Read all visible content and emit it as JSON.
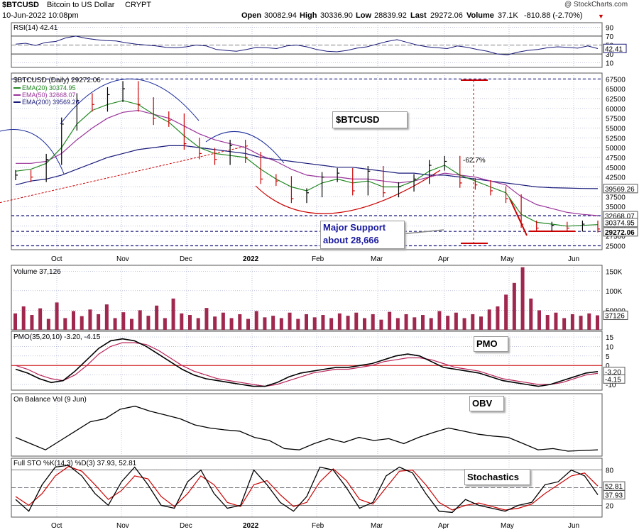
{
  "header": {
    "symbol": "$BTCUSD",
    "name": "Bitcoin to US Dollar",
    "exchange": "CRYPT",
    "date_time": "10-Jun-2022 10:08pm",
    "open_label": "Open",
    "open": "30082.94",
    "high_label": "High",
    "high": "30336.90",
    "low_label": "Low",
    "low": "28839.92",
    "last_label": "Last",
    "last": "29272.06",
    "volume_label": "Volume",
    "volume": "37.1K",
    "change": "-810.88 (-2.70%)",
    "watermark": "@ StockCharts.com"
  },
  "colors": {
    "grid": "#9aa0c8",
    "up": "#000000",
    "down": "#cc0000",
    "ema20": "#228822",
    "ema50": "#993399",
    "ema200": "#1a1a7a",
    "dashed": "#1a1a7a",
    "red": "#cc0000",
    "volume": "#a0284e"
  },
  "x_axis": {
    "labels": [
      "Oct",
      "Nov",
      "Dec",
      "2022",
      "Feb",
      "Mar",
      "Apr",
      "May",
      "Jun"
    ]
  },
  "chart_data": [
    {
      "type": "line",
      "panel": "rsi",
      "label": "RSI(14) 42.41",
      "y_ticks": [
        "90",
        "70",
        "50",
        "30",
        "10"
      ],
      "ylim": [
        0,
        100
      ],
      "levels": [
        70,
        30
      ],
      "last_value": "42.41",
      "series": [
        {
          "values": [
            52,
            54,
            49,
            56,
            58,
            66,
            70,
            65,
            62,
            60,
            59,
            55,
            52,
            50,
            48,
            45,
            44,
            46,
            50,
            48,
            40,
            38,
            36,
            40,
            45,
            44,
            42,
            48,
            50,
            46,
            40,
            36,
            35,
            38,
            43,
            46,
            52,
            58,
            62,
            56,
            50,
            46,
            44,
            42,
            48,
            45,
            40,
            36,
            30,
            28,
            34,
            38,
            40,
            44,
            46,
            45,
            43,
            48,
            42
          ]
        }
      ]
    },
    {
      "type": "candlestick",
      "panel": "price",
      "label": "$BTCUSD (Daily) 29272.06",
      "y_ticks": [
        "67500",
        "65000",
        "62500",
        "60000",
        "57500",
        "55000",
        "52500",
        "50000",
        "47500",
        "45000",
        "42500",
        "40000",
        "37500",
        "35000",
        "32500",
        "30000",
        "27500",
        "25000"
      ],
      "ylim": [
        24000,
        69000
      ],
      "dates": [
        "Sep 20",
        "Sep 27",
        "Oct 4",
        "Oct 11",
        "Oct 18",
        "Oct 25",
        "Nov 1",
        "Nov 8",
        "Nov 15",
        "Nov 22",
        "Nov 29",
        "Dec 6",
        "Dec 13",
        "Dec 20",
        "Dec 27",
        "Jan 3",
        "Jan 10",
        "Jan 17",
        "Jan 24",
        "Jan 31",
        "Feb 7",
        "Feb 14",
        "Feb 21",
        "Feb 28",
        "Mar 7",
        "Mar 14",
        "Mar 21",
        "Mar 28",
        "Apr 4",
        "Apr 11",
        "Apr 18",
        "Apr 25",
        "May 2",
        "May 9",
        "May 16",
        "May 23",
        "May 30",
        "Jun 6",
        "Jun 10"
      ],
      "close": [
        43000,
        42500,
        47000,
        56000,
        62000,
        61000,
        63500,
        65000,
        61000,
        57500,
        57000,
        51000,
        48500,
        47000,
        50500,
        47500,
        42000,
        41500,
        37000,
        38500,
        42500,
        43500,
        39000,
        44000,
        38500,
        40000,
        42000,
        45500,
        46500,
        41000,
        40500,
        39000,
        37000,
        30500,
        29500,
        30200,
        29500,
        30500,
        29272
      ],
      "ema20_label": "EMA(20) 30374.95",
      "ema20": [
        44000,
        44500,
        46000,
        50000,
        56000,
        59500,
        61000,
        62000,
        61000,
        58500,
        56500,
        53000,
        50000,
        48500,
        48000,
        47500,
        44500,
        42000,
        40000,
        39000,
        41000,
        42000,
        41000,
        41500,
        40000,
        40000,
        41500,
        44000,
        45500,
        43000,
        41500,
        40000,
        38500,
        33000,
        31000,
        30500,
        30000,
        30200,
        30375
      ],
      "ema50_label": "EMA(50) 32668.07",
      "ema50": [
        46000,
        46000,
        46500,
        48500,
        52000,
        55000,
        57500,
        59000,
        59500,
        58500,
        57500,
        55500,
        53500,
        52000,
        51000,
        50000,
        48000,
        46500,
        44500,
        43000,
        42500,
        42500,
        42000,
        42000,
        41500,
        41000,
        41500,
        42500,
        43500,
        43000,
        42500,
        41500,
        40500,
        37500,
        35500,
        34500,
        33500,
        33000,
        32668
      ],
      "ema200_label": "EMA(200) 39569.26",
      "ema200": [
        40500,
        41500,
        42000,
        43000,
        44500,
        46000,
        47500,
        48500,
        49500,
        50000,
        50500,
        50500,
        50000,
        49500,
        49000,
        48500,
        47500,
        47000,
        46500,
        46000,
        45500,
        45000,
        45000,
        44500,
        44000,
        43500,
        43500,
        43000,
        43000,
        42500,
        42000,
        41500,
        41000,
        40500,
        40000,
        39800,
        39700,
        39600,
        39569
      ],
      "levels": [
        {
          "value": 67500
        },
        {
          "value": 32668
        },
        {
          "value": 28666
        },
        {
          "value": 25000
        }
      ],
      "right_labels": [
        "39569.26",
        "32668.07",
        "30374.95",
        "29272.06"
      ],
      "drawdown_label": "-62.7%"
    },
    {
      "type": "bar",
      "panel": "volume",
      "label": "Volume 37,126",
      "y_ticks": [
        "150K",
        "100K",
        "50000"
      ],
      "ylim": [
        0,
        165000
      ],
      "last_value": "37126",
      "values": [
        42000,
        60000,
        38000,
        55000,
        28000,
        70000,
        30000,
        48000,
        35000,
        52000,
        40000,
        65000,
        30000,
        45000,
        28000,
        50000,
        36000,
        62000,
        30000,
        80000,
        42000,
        38000,
        30000,
        56000,
        34000,
        44000,
        30000,
        40000,
        28000,
        48000,
        32000,
        36000,
        30000,
        44000,
        28000,
        40000,
        32000,
        38000,
        30000,
        42000,
        36000,
        44000,
        30000,
        40000,
        26000,
        46000,
        30000,
        40000,
        32000,
        38000,
        30000,
        48000,
        36000,
        44000,
        30000,
        40000,
        34000,
        52000,
        60000,
        90000,
        120000,
        160000,
        80000,
        50000,
        38000,
        44000,
        30000,
        40000,
        36000,
        42000,
        37126
      ]
    },
    {
      "type": "line",
      "panel": "pmo",
      "label": "PMO(35,20,10) -3.20, -4.15",
      "y_ticks": [
        "15",
        "10",
        "5",
        "0",
        "-5",
        "-10"
      ],
      "ylim": [
        -13,
        18
      ],
      "last_values": [
        "-3.20",
        "-4.15"
      ],
      "series": [
        {
          "values": [
            -2,
            -4,
            -7,
            -9,
            -8,
            -3,
            3,
            9,
            13,
            14,
            13,
            10,
            6,
            2,
            -2,
            -5,
            -7,
            -8,
            -9,
            -10,
            -11,
            -11,
            -9,
            -6,
            -4,
            -3,
            -2,
            -1,
            -1,
            0,
            1,
            3,
            5,
            6,
            5,
            2,
            -1,
            -2,
            -3,
            -4,
            -6,
            -8,
            -9,
            -10,
            -11,
            -10,
            -8,
            -6,
            -4,
            -3.2
          ]
        },
        {
          "values": [
            0,
            -2,
            -5,
            -7,
            -8,
            -5,
            0,
            6,
            10,
            12,
            12,
            11,
            8,
            4,
            0,
            -3,
            -5,
            -7,
            -8,
            -9,
            -10,
            -11,
            -10,
            -8,
            -6,
            -4,
            -3,
            -2,
            -2,
            -1,
            0,
            2,
            3,
            4,
            4,
            3,
            1,
            -1,
            -2,
            -3,
            -5,
            -7,
            -8,
            -9,
            -10,
            -10,
            -9,
            -7,
            -5,
            -4.15
          ]
        }
      ]
    },
    {
      "type": "line",
      "panel": "obv",
      "label": "On Balance Vol (9 Jun)",
      "series": [
        {
          "values": [
            30,
            20,
            10,
            25,
            40,
            55,
            60,
            75,
            80,
            72,
            66,
            60,
            50,
            45,
            42,
            40,
            30,
            25,
            12,
            10,
            20,
            28,
            22,
            30,
            25,
            28,
            20,
            30,
            38,
            45,
            40,
            35,
            32,
            30,
            20,
            10,
            12,
            8,
            9,
            10
          ]
        }
      ]
    },
    {
      "type": "line",
      "panel": "stochastics",
      "label": "Full STO %K(14,3) %D(3) 37.93, 52.81",
      "y_ticks": [
        "80",
        "50",
        "20"
      ],
      "ylim": [
        0,
        100
      ],
      "levels": [
        80,
        50,
        20
      ],
      "last_values": [
        "52.81",
        "37.93"
      ],
      "series": [
        {
          "values": [
            30,
            10,
            55,
            85,
            88,
            70,
            40,
            20,
            60,
            85,
            55,
            20,
            15,
            60,
            80,
            40,
            15,
            20,
            80,
            55,
            25,
            10,
            35,
            85,
            80,
            50,
            15,
            25,
            70,
            85,
            75,
            40,
            10,
            8,
            30,
            20,
            15,
            10,
            20,
            25,
            55,
            60,
            80,
            70,
            37.93
          ]
        },
        {
          "values": [
            35,
            20,
            40,
            70,
            86,
            78,
            55,
            30,
            45,
            70,
            65,
            35,
            18,
            40,
            70,
            55,
            25,
            18,
            55,
            62,
            38,
            18,
            25,
            60,
            82,
            62,
            30,
            22,
            50,
            78,
            80,
            55,
            25,
            12,
            20,
            24,
            18,
            12,
            15,
            22,
            40,
            55,
            70,
            75,
            52.81
          ]
        }
      ]
    }
  ],
  "annotations": {
    "btc_box": "$BTCUSD",
    "support_line1": "Major Support",
    "support_line2": "about 28,666",
    "pmo_box": "PMO",
    "obv_box": "OBV",
    "sto_box": "Stochastics"
  }
}
